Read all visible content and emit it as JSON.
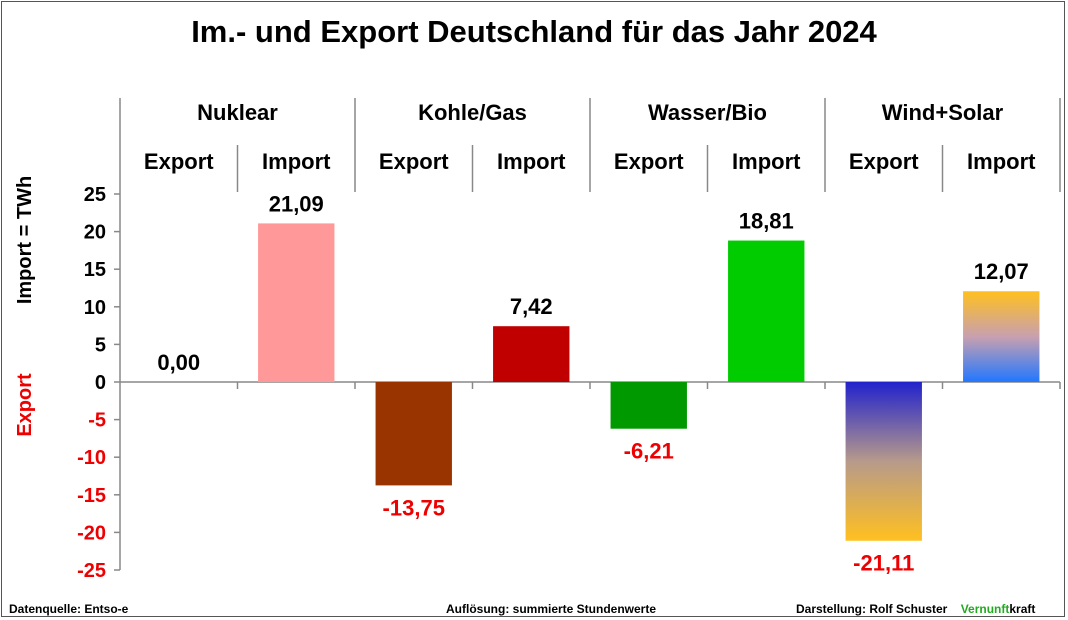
{
  "title": "Im.- und Export Deutschland für das Jahr 2024",
  "footer": {
    "source": "Datenquelle: Entso-e",
    "resolution": "Auflösung: summierte Stundenwerte",
    "credit_prefix": "Darstellung:  Rolf Schuster",
    "credit_brand_green": "Vernunft",
    "credit_brand_black": "kraft"
  },
  "colors": {
    "import_axis_label": "#000000",
    "export_axis_label": "#ee0000",
    "negative_value_label": "#ee0000",
    "brand_green": "#22aa22"
  },
  "chart_data": {
    "type": "bar",
    "title": "Im.- und Export Deutschland für das Jahr 2024",
    "ylabel_positive": "Import =  TWh",
    "ylabel_negative": "Export",
    "ylim": [
      -25,
      25
    ],
    "yticks": [
      25,
      20,
      15,
      10,
      5,
      0,
      -5,
      -10,
      -15,
      -20,
      -25
    ],
    "grid": false,
    "groups": [
      "Nuklear",
      "Kohle/Gas",
      "Wasser/Bio",
      "Wind+Solar"
    ],
    "subcategories": [
      "Export",
      "Import"
    ],
    "bars": [
      {
        "group": "Nuklear",
        "sub": "Export",
        "value": 0.0,
        "label": "0,00",
        "color": "#ff9999"
      },
      {
        "group": "Nuklear",
        "sub": "Import",
        "value": 21.09,
        "label": "21,09",
        "color": "#ff9999"
      },
      {
        "group": "Kohle/Gas",
        "sub": "Export",
        "value": -13.75,
        "label": "-13,75",
        "color": "#993300"
      },
      {
        "group": "Kohle/Gas",
        "sub": "Import",
        "value": 7.42,
        "label": "7,42",
        "color": "#c00000"
      },
      {
        "group": "Wasser/Bio",
        "sub": "Export",
        "value": -6.21,
        "label": "-6,21",
        "color": "#009900"
      },
      {
        "group": "Wasser/Bio",
        "sub": "Import",
        "value": 18.81,
        "label": "18,81",
        "color": "#00cc00"
      },
      {
        "group": "Wind+Solar",
        "sub": "Export",
        "value": -21.11,
        "label": "-21,11",
        "gradient": [
          "#2222cc",
          "#ffc020"
        ]
      },
      {
        "group": "Wind+Solar",
        "sub": "Import",
        "value": 12.07,
        "label": "12,07",
        "gradient": [
          "#ffc020",
          "#2277ff"
        ]
      }
    ]
  }
}
